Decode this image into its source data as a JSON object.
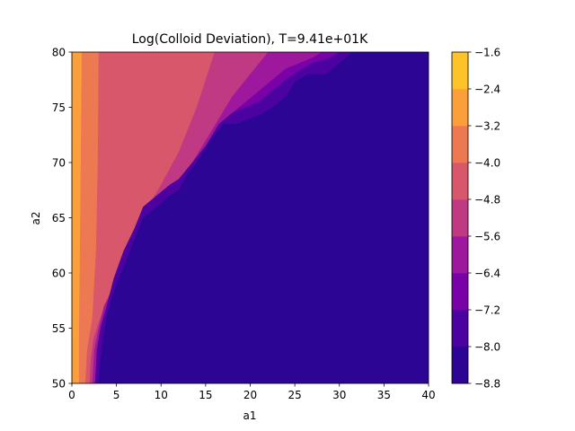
{
  "chart_data": {
    "type": "heatmap",
    "subtype": "filled-contour",
    "title": "Log(Colloid Deviation), T=9.41e+01K",
    "xlabel": "a1",
    "ylabel": "a2",
    "xlim": [
      0,
      40
    ],
    "ylim": [
      50,
      80
    ],
    "x_ticks": [
      "0",
      "5",
      "10",
      "15",
      "20",
      "25",
      "30",
      "35",
      "40"
    ],
    "y_ticks": [
      "50",
      "55",
      "60",
      "65",
      "70",
      "75",
      "80"
    ],
    "colorbar": {
      "levels": [
        -8.8,
        -8.0,
        -7.2,
        -6.4,
        -5.6,
        -4.8,
        -4.0,
        -3.2,
        -2.4,
        -1.6
      ],
      "tick_labels": [
        "−8.8",
        "−8.0",
        "−7.2",
        "−6.4",
        "−5.6",
        "−4.8",
        "−4.0",
        "−3.2",
        "−2.4",
        "−1.6"
      ],
      "colors": [
        "#2c0594",
        "#4c02a1",
        "#7801a8",
        "#9e189d",
        "#c03a83",
        "#d8576b",
        "#ed7953",
        "#fb9f3a",
        "#fdc328",
        "#f0f921"
      ],
      "colormap": "plasma"
    },
    "bands": [
      {
        "range": [
          -8.8,
          -8.0
        ],
        "boundary": [
          [
            40,
            80
          ],
          [
            31.5,
            80
          ],
          [
            30,
            79
          ],
          [
            28.5,
            78
          ],
          [
            26.5,
            78
          ],
          [
            25,
            77.3
          ],
          [
            24,
            76
          ],
          [
            22.5,
            75
          ],
          [
            21,
            74.3
          ],
          [
            20,
            74
          ],
          [
            18.5,
            73.5
          ],
          [
            17,
            73.5
          ],
          [
            15.5,
            72
          ],
          [
            14,
            70
          ],
          [
            13,
            69
          ],
          [
            12,
            67.5
          ],
          [
            11,
            67
          ],
          [
            9.5,
            66
          ],
          [
            8,
            65
          ],
          [
            7,
            63
          ],
          [
            6,
            61
          ],
          [
            5,
            59
          ],
          [
            4,
            56.5
          ],
          [
            3.5,
            54
          ],
          [
            3.2,
            52
          ],
          [
            3,
            50
          ],
          [
            40,
            50
          ]
        ]
      },
      {
        "range": [
          -8.0,
          -7.2
        ],
        "boundary": [
          [
            40,
            80
          ],
          [
            30,
            80
          ],
          [
            29,
            79.5
          ],
          [
            27,
            79
          ],
          [
            25.5,
            78.3
          ],
          [
            24,
            77.5
          ],
          [
            22.5,
            76.5
          ],
          [
            21,
            75.5
          ],
          [
            19.5,
            75
          ],
          [
            18,
            74.5
          ],
          [
            16.5,
            73.5
          ],
          [
            15,
            71.5
          ],
          [
            13.5,
            70
          ],
          [
            12,
            68.5
          ],
          [
            11,
            68
          ],
          [
            9.5,
            67
          ],
          [
            8,
            66
          ],
          [
            7,
            64
          ],
          [
            5.8,
            62
          ],
          [
            4.7,
            59.5
          ],
          [
            3.9,
            57
          ],
          [
            3.2,
            55
          ],
          [
            2.8,
            53
          ],
          [
            2.6,
            50
          ],
          [
            40,
            50
          ]
        ]
      },
      {
        "range": [
          -7.2,
          -6.4
        ],
        "boundary": [
          [
            40,
            80
          ],
          [
            28,
            80
          ],
          [
            27,
            79.5
          ],
          [
            25.5,
            79
          ],
          [
            24,
            78.5
          ],
          [
            22.5,
            77.5
          ],
          [
            21,
            76.5
          ],
          [
            19.5,
            75.5
          ],
          [
            18,
            74.5
          ],
          [
            16.5,
            73
          ],
          [
            15,
            71.5
          ],
          [
            13.5,
            70
          ],
          [
            12,
            68.5
          ],
          [
            11,
            68
          ],
          [
            9.5,
            67
          ],
          [
            8,
            66
          ],
          [
            7,
            64
          ],
          [
            5.8,
            62
          ],
          [
            4.7,
            59.5
          ],
          [
            3.9,
            57
          ],
          [
            3.2,
            55
          ],
          [
            2.8,
            53
          ],
          [
            2.6,
            50
          ],
          [
            40,
            50
          ]
        ]
      },
      {
        "range": [
          -6.4,
          -5.6
        ],
        "boundary": [
          [
            40,
            80
          ],
          [
            22,
            80
          ],
          [
            21,
            79
          ],
          [
            19.5,
            77.5
          ],
          [
            18,
            76
          ],
          [
            16.5,
            74
          ],
          [
            15,
            72
          ],
          [
            13.5,
            70
          ],
          [
            12,
            68.5
          ],
          [
            11,
            68
          ],
          [
            9.5,
            66.5
          ],
          [
            8,
            64.5
          ],
          [
            7,
            62.5
          ],
          [
            5.6,
            60.5
          ],
          [
            4.5,
            58.5
          ],
          [
            3.6,
            57
          ],
          [
            3,
            55
          ],
          [
            2.5,
            53
          ],
          [
            2.3,
            50
          ],
          [
            40,
            50
          ]
        ]
      },
      {
        "range": [
          -5.6,
          -4.8
        ],
        "boundary": [
          [
            40,
            80
          ],
          [
            16,
            80
          ],
          [
            14,
            75
          ],
          [
            12,
            71
          ],
          [
            10,
            68
          ],
          [
            8.5,
            66
          ],
          [
            7,
            63.5
          ],
          [
            5.5,
            61
          ],
          [
            4.3,
            58
          ],
          [
            3.2,
            56
          ],
          [
            2.4,
            54
          ],
          [
            2.1,
            52
          ],
          [
            2,
            50
          ],
          [
            40,
            50
          ]
        ]
      },
      {
        "range": [
          -4.8,
          -4.0
        ],
        "boundary": [
          [
            40,
            80
          ],
          [
            3,
            80
          ],
          [
            2.9,
            70
          ],
          [
            2.7,
            62
          ],
          [
            2.3,
            56
          ],
          [
            1.7,
            53
          ],
          [
            1.5,
            50
          ],
          [
            40,
            50
          ]
        ]
      },
      {
        "range": [
          -4.0,
          -3.2
        ],
        "boundary": [
          [
            40,
            80
          ],
          [
            1.1,
            80
          ],
          [
            1.0,
            70
          ],
          [
            0.9,
            62
          ],
          [
            0.8,
            54
          ],
          [
            0.8,
            50
          ],
          [
            40,
            50
          ]
        ]
      },
      {
        "range": [
          -3.2,
          -2.4
        ],
        "boundary": [
          [
            40,
            80
          ],
          [
            0,
            80
          ],
          [
            0,
            50
          ],
          [
            40,
            50
          ]
        ]
      }
    ]
  }
}
